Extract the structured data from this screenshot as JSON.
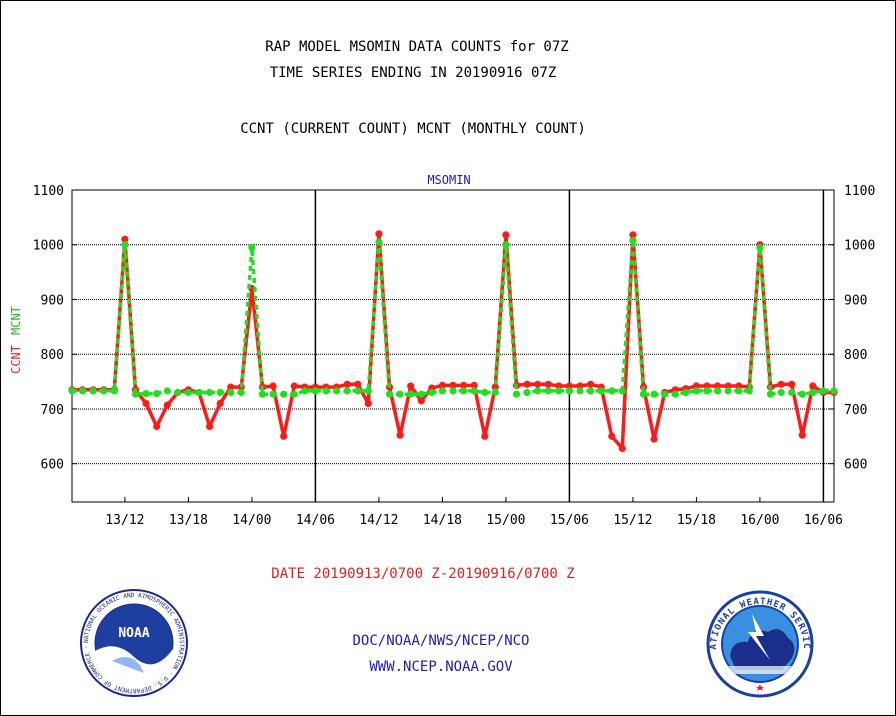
{
  "header": {
    "title_line1": "RAP MODEL MSOMIN DATA COUNTS for 07Z",
    "title_line2": "TIME SERIES ENDING IN 20190916 07Z",
    "subtitle": "CCNT (CURRENT COUNT) MCNT (MONTHLY COUNT)"
  },
  "footer": {
    "date_range": "DATE 20190913/0700 Z-20190916/0700 Z",
    "org_path": "DOC/NOAA/NWS/NCEP/NCO",
    "website": "WWW.NCEP.NOAA.GOV"
  },
  "logos": {
    "noaa_text": "NOAA",
    "noaa_ring_text": "NATIONAL OCEANIC AND ATMOSPHERIC ADMINISTRATION · U.S. DEPARTMENT OF COMMERCE ·",
    "nws_ring_text": "NATIONAL WEATHER SERVICE"
  },
  "colors": {
    "ccnt": "#ff1a1a",
    "mcnt": "#22dd22",
    "title": "#000000",
    "panel_label": "#1a1aa8",
    "footer_date": "#e02020",
    "footer_links": "#2020b0"
  },
  "chart_data": {
    "type": "line",
    "panel_label": "MSOMIN",
    "ylabel_parts": [
      "CCNT",
      "MCNT"
    ],
    "ylim": [
      530,
      1100
    ],
    "y_ticks": [
      600,
      700,
      800,
      900,
      1000,
      1100
    ],
    "grid": true,
    "x_unit": "hours since 2019-09-13 07Z",
    "xlim": [
      0,
      72
    ],
    "x_ticks": [
      {
        "x": 5,
        "label": "13/12"
      },
      {
        "x": 11,
        "label": "13/18"
      },
      {
        "x": 17,
        "label": "14/00"
      },
      {
        "x": 23,
        "label": "14/06"
      },
      {
        "x": 29,
        "label": "14/12"
      },
      {
        "x": 35,
        "label": "14/18"
      },
      {
        "x": 41,
        "label": "15/00"
      },
      {
        "x": 47,
        "label": "15/06"
      },
      {
        "x": 53,
        "label": "15/12"
      },
      {
        "x": 59,
        "label": "15/18"
      },
      {
        "x": 65,
        "label": "16/00"
      },
      {
        "x": 71,
        "label": "16/06"
      }
    ],
    "day_boundaries": [
      23,
      47,
      71
    ],
    "series": [
      {
        "name": "CCNT",
        "x": [
          0,
          1,
          2,
          3,
          4,
          5,
          6,
          7,
          8,
          9,
          10,
          11,
          12,
          13,
          14,
          15,
          16,
          17,
          18,
          19,
          20,
          21,
          22,
          23,
          24,
          25,
          26,
          27,
          28,
          29,
          30,
          31,
          32,
          33,
          34,
          35,
          36,
          37,
          38,
          39,
          40,
          41,
          42,
          43,
          44,
          45,
          46,
          47,
          48,
          49,
          50,
          51,
          52,
          53,
          54,
          55,
          56,
          57,
          58,
          59,
          60,
          61,
          62,
          63,
          64,
          65,
          66,
          67,
          68,
          69,
          70,
          71,
          72
        ],
        "values": [
          735,
          735,
          735,
          735,
          735,
          1010,
          735,
          710,
          668,
          707,
          730,
          735,
          730,
          668,
          710,
          740,
          740,
          920,
          740,
          742,
          650,
          742,
          740,
          740,
          740,
          740,
          745,
          745,
          710,
          1020,
          740,
          652,
          742,
          715,
          738,
          743,
          743,
          743,
          743,
          650,
          740,
          1018,
          743,
          745,
          745,
          745,
          742,
          742,
          742,
          745,
          740,
          650,
          628,
          1018,
          740,
          645,
          730,
          735,
          737,
          742,
          742,
          742,
          742,
          742,
          740,
          1000,
          740,
          745,
          745,
          652,
          742,
          730,
          730
        ]
      },
      {
        "name": "MCNT",
        "x": [
          0,
          1,
          2,
          3,
          4,
          5,
          6,
          7,
          8,
          9,
          10,
          11,
          12,
          13,
          14,
          15,
          16,
          17,
          18,
          19,
          20,
          21,
          22,
          23,
          24,
          25,
          26,
          27,
          28,
          29,
          30,
          31,
          32,
          33,
          34,
          35,
          36,
          37,
          38,
          39,
          40,
          41,
          42,
          43,
          44,
          45,
          46,
          47,
          48,
          49,
          50,
          51,
          52,
          53,
          54,
          55,
          56,
          57,
          58,
          59,
          60,
          61,
          62,
          63,
          64,
          65,
          66,
          67,
          68,
          69,
          70,
          71,
          72
        ],
        "values": [
          733,
          733,
          733,
          733,
          733,
          1000,
          727,
          728,
          728,
          733,
          730,
          730,
          730,
          730,
          730,
          730,
          730,
          995,
          727,
          727,
          727,
          727,
          733,
          733,
          733,
          733,
          733,
          733,
          733,
          1005,
          727,
          727,
          727,
          727,
          730,
          733,
          733,
          733,
          733,
          730,
          730,
          1000,
          727,
          730,
          733,
          733,
          733,
          733,
          733,
          733,
          733,
          733,
          733,
          1008,
          727,
          727,
          727,
          727,
          730,
          733,
          733,
          733,
          733,
          733,
          733,
          995,
          727,
          730,
          730,
          727,
          730,
          733,
          733
        ]
      }
    ]
  }
}
